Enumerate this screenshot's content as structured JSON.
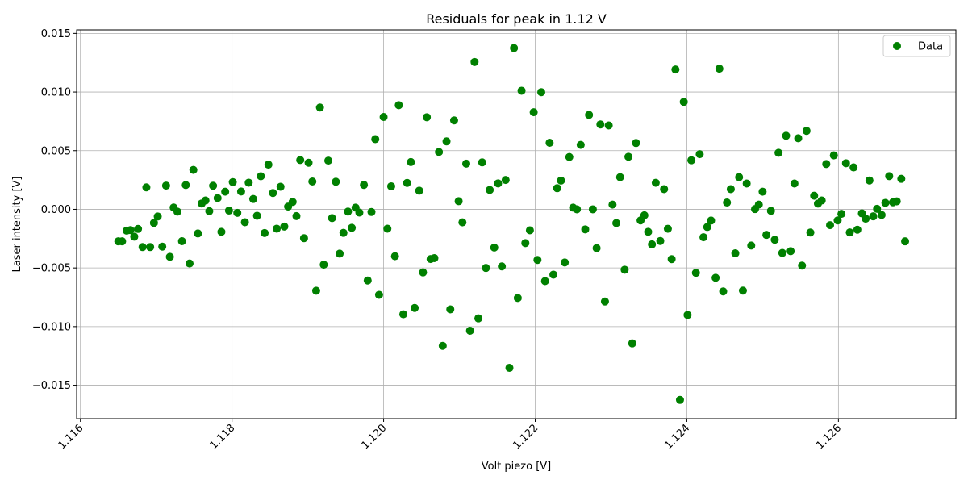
{
  "chart_data": {
    "type": "scatter",
    "title": "Residuals for peak in 1.12 V",
    "xlabel": "Volt piezo [V]",
    "ylabel": "Laser intensity [V]",
    "xlim": [
      1.11595,
      1.12755
    ],
    "ylim": [
      -0.01785,
      0.0153
    ],
    "grid": true,
    "legend_position": "top-right",
    "xticks": [
      {
        "value": 1.116,
        "label": "1.116"
      },
      {
        "value": 1.118,
        "label": "1.118"
      },
      {
        "value": 1.12,
        "label": "1.120"
      },
      {
        "value": 1.122,
        "label": "1.122"
      },
      {
        "value": 1.124,
        "label": "1.124"
      },
      {
        "value": 1.126,
        "label": "1.126"
      }
    ],
    "yticks": [
      {
        "value": -0.015,
        "label": "−0.015"
      },
      {
        "value": -0.01,
        "label": "−0.010"
      },
      {
        "value": -0.005,
        "label": "−0.005"
      },
      {
        "value": 0.0,
        "label": "0.000"
      },
      {
        "value": 0.005,
        "label": "0.005"
      },
      {
        "value": 0.01,
        "label": "0.010"
      },
      {
        "value": 0.015,
        "label": "0.015"
      }
    ],
    "series": [
      {
        "name": "Data",
        "color": "#008000",
        "points": [
          [
            1.1165,
            -0.00273
          ],
          [
            1.11655,
            -0.00273
          ],
          [
            1.11661,
            -0.00182
          ],
          [
            1.11666,
            -0.00177
          ],
          [
            1.11671,
            -0.00233
          ],
          [
            1.11676,
            -0.00167
          ],
          [
            1.11682,
            -0.00322
          ],
          [
            1.11687,
            0.00187
          ],
          [
            1.11692,
            -0.00322
          ],
          [
            1.11697,
            -0.00116
          ],
          [
            1.11702,
            -0.00061
          ],
          [
            1.11708,
            -0.00318
          ],
          [
            1.11713,
            0.00202
          ],
          [
            1.11718,
            -0.00405
          ],
          [
            1.11723,
            0.00015
          ],
          [
            1.11728,
            -0.0002
          ],
          [
            1.11734,
            -0.00272
          ],
          [
            1.11739,
            0.00207
          ],
          [
            1.11744,
            -0.00462
          ],
          [
            1.11749,
            0.00336
          ],
          [
            1.11755,
            -0.00206
          ],
          [
            1.1176,
            0.0005
          ],
          [
            1.11765,
            0.00075
          ],
          [
            1.1177,
            -0.00016
          ],
          [
            1.11775,
            0.00201
          ],
          [
            1.11781,
            0.00096
          ],
          [
            1.11786,
            -0.00192
          ],
          [
            1.11791,
            0.0015
          ],
          [
            1.11796,
            -0.00011
          ],
          [
            1.11801,
            0.00232
          ],
          [
            1.11807,
            -0.0003
          ],
          [
            1.11812,
            0.00152
          ],
          [
            1.11817,
            -0.0011
          ],
          [
            1.11822,
            0.00227
          ],
          [
            1.11828,
            0.00088
          ],
          [
            1.11833,
            -0.00055
          ],
          [
            1.11838,
            0.00282
          ],
          [
            1.11843,
            -0.00202
          ],
          [
            1.11848,
            0.00381
          ],
          [
            1.11854,
            0.00139
          ],
          [
            1.11859,
            -0.00165
          ],
          [
            1.11864,
            0.00192
          ],
          [
            1.11869,
            -0.00147
          ],
          [
            1.11874,
            0.00023
          ],
          [
            1.1188,
            0.00063
          ],
          [
            1.11885,
            -0.00058
          ],
          [
            1.1189,
            0.0042
          ],
          [
            1.11895,
            -0.00246
          ],
          [
            1.11901,
            0.00397
          ],
          [
            1.11906,
            0.00237
          ],
          [
            1.11911,
            -0.00694
          ],
          [
            1.11916,
            0.00868
          ],
          [
            1.11921,
            -0.00472
          ],
          [
            1.11927,
            0.00415
          ],
          [
            1.11932,
            -0.00075
          ],
          [
            1.11937,
            0.00235
          ],
          [
            1.11942,
            -0.00378
          ],
          [
            1.11947,
            -0.00201
          ],
          [
            1.11953,
            -0.00019
          ],
          [
            1.11958,
            -0.00158
          ],
          [
            1.11963,
            0.00014
          ],
          [
            1.11968,
            -0.00028
          ],
          [
            1.11974,
            0.00208
          ],
          [
            1.11979,
            -0.00607
          ],
          [
            1.11984,
            -0.00023
          ],
          [
            1.11989,
            0.00598
          ],
          [
            1.11994,
            -0.00729
          ],
          [
            1.12,
            0.00787
          ],
          [
            1.12005,
            -0.00165
          ],
          [
            1.1201,
            0.00196
          ],
          [
            1.12015,
            -0.004
          ],
          [
            1.1202,
            0.00888
          ],
          [
            1.12026,
            -0.00895
          ],
          [
            1.12031,
            0.00225
          ],
          [
            1.12036,
            0.00403
          ],
          [
            1.12041,
            -0.00841
          ],
          [
            1.12047,
            0.00159
          ],
          [
            1.12052,
            -0.00538
          ],
          [
            1.12057,
            0.00785
          ],
          [
            1.12062,
            -0.00424
          ],
          [
            1.12067,
            -0.00416
          ],
          [
            1.12073,
            0.00489
          ],
          [
            1.12078,
            -0.01164
          ],
          [
            1.12083,
            0.00579
          ],
          [
            1.12088,
            -0.00853
          ],
          [
            1.12093,
            0.00758
          ],
          [
            1.12099,
            0.00069
          ],
          [
            1.12104,
            -0.00111
          ],
          [
            1.12109,
            0.00389
          ],
          [
            1.12114,
            -0.01035
          ],
          [
            1.1212,
            0.01256
          ],
          [
            1.12125,
            -0.0093
          ],
          [
            1.1213,
            0.004
          ],
          [
            1.12135,
            -0.005
          ],
          [
            1.1214,
            0.00165
          ],
          [
            1.12146,
            -0.00326
          ],
          [
            1.12151,
            0.00221
          ],
          [
            1.12156,
            -0.00487
          ],
          [
            1.12161,
            0.0025
          ],
          [
            1.12166,
            -0.01352
          ],
          [
            1.12172,
            0.01375
          ],
          [
            1.12177,
            -0.00756
          ],
          [
            1.12182,
            0.01011
          ],
          [
            1.12187,
            -0.00288
          ],
          [
            1.12193,
            -0.00179
          ],
          [
            1.12198,
            0.00828
          ],
          [
            1.12203,
            -0.00432
          ],
          [
            1.12208,
            0.00999
          ],
          [
            1.12213,
            -0.00612
          ],
          [
            1.12219,
            0.00567
          ],
          [
            1.12224,
            -0.00557
          ],
          [
            1.12229,
            0.0018
          ],
          [
            1.12234,
            0.00245
          ],
          [
            1.12239,
            -0.00453
          ],
          [
            1.12245,
            0.00446
          ],
          [
            1.1225,
            0.00014
          ],
          [
            1.12255,
            0.0
          ],
          [
            1.1226,
            0.00549
          ],
          [
            1.12266,
            -0.00171
          ],
          [
            1.12271,
            0.00805
          ],
          [
            1.12276,
            0.0
          ],
          [
            1.12281,
            -0.00331
          ],
          [
            1.12286,
            0.00724
          ],
          [
            1.12292,
            -0.00786
          ],
          [
            1.12297,
            0.00715
          ],
          [
            1.12302,
            0.0004
          ],
          [
            1.12307,
            -0.00117
          ],
          [
            1.12312,
            0.00274
          ],
          [
            1.12318,
            -0.00515
          ],
          [
            1.12323,
            0.00448
          ],
          [
            1.12328,
            -0.01143
          ],
          [
            1.12333,
            0.00565
          ],
          [
            1.12339,
            -0.00095
          ],
          [
            1.12344,
            -0.00051
          ],
          [
            1.12349,
            -0.00192
          ],
          [
            1.12354,
            -0.00299
          ],
          [
            1.12359,
            0.00226
          ],
          [
            1.12365,
            -0.0027
          ],
          [
            1.1237,
            0.00172
          ],
          [
            1.12375,
            -0.00166
          ],
          [
            1.1238,
            -0.00425
          ],
          [
            1.12385,
            0.01192
          ],
          [
            1.12391,
            -0.01625
          ],
          [
            1.12396,
            0.00916
          ],
          [
            1.12401,
            -0.00901
          ],
          [
            1.12406,
            0.00418
          ],
          [
            1.12412,
            -0.00542
          ],
          [
            1.12417,
            0.0047
          ],
          [
            1.12422,
            -0.00238
          ],
          [
            1.12427,
            -0.00151
          ],
          [
            1.12432,
            -0.00096
          ],
          [
            1.12438,
            -0.00584
          ],
          [
            1.12443,
            0.01199
          ],
          [
            1.12448,
            -0.007
          ],
          [
            1.12453,
            0.00058
          ],
          [
            1.12458,
            0.00172
          ],
          [
            1.12464,
            -0.00375
          ],
          [
            1.12469,
            0.00274
          ],
          [
            1.12474,
            -0.00693
          ],
          [
            1.12479,
            0.0022
          ],
          [
            1.12485,
            -0.00309
          ],
          [
            1.1249,
            2e-05
          ],
          [
            1.12495,
            0.0004
          ],
          [
            1.125,
            0.0015
          ],
          [
            1.12505,
            -0.00218
          ],
          [
            1.12511,
            -0.00013
          ],
          [
            1.12516,
            -0.0026
          ],
          [
            1.12521,
            0.00482
          ],
          [
            1.12526,
            -0.00372
          ],
          [
            1.12531,
            0.00627
          ],
          [
            1.12537,
            -0.00357
          ],
          [
            1.12542,
            0.0022
          ],
          [
            1.12547,
            0.00606
          ],
          [
            1.12552,
            -0.0048
          ],
          [
            1.12558,
            0.00669
          ],
          [
            1.12563,
            -0.00198
          ],
          [
            1.12568,
            0.00116
          ],
          [
            1.12573,
            0.00049
          ],
          [
            1.12578,
            0.00075
          ],
          [
            1.12584,
            0.00386
          ],
          [
            1.12589,
            -0.00135
          ],
          [
            1.12594,
            0.0046
          ],
          [
            1.12599,
            -0.00095
          ],
          [
            1.12604,
            -0.00039
          ],
          [
            1.1261,
            0.00393
          ],
          [
            1.12615,
            -0.00197
          ],
          [
            1.1262,
            0.00357
          ],
          [
            1.12625,
            -0.00174
          ],
          [
            1.12631,
            -0.00035
          ],
          [
            1.12636,
            -0.0008
          ],
          [
            1.12641,
            0.00246
          ],
          [
            1.12646,
            -0.0006
          ],
          [
            1.12651,
            4e-05
          ],
          [
            1.12657,
            -0.00048
          ],
          [
            1.12662,
            0.00055
          ],
          [
            1.12667,
            0.00283
          ],
          [
            1.12672,
            0.0006
          ],
          [
            1.12677,
            0.00068
          ],
          [
            1.12683,
            0.0026
          ],
          [
            1.12688,
            -0.00273
          ]
        ]
      }
    ]
  }
}
